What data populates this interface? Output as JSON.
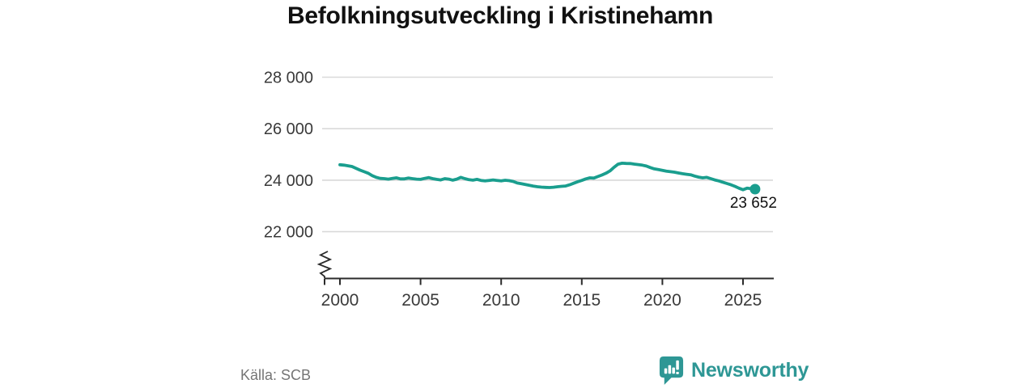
{
  "chart_data": {
    "type": "line",
    "title": "Befolkningsutveckling i Kristinehamn",
    "grid": "horizontal",
    "legend": "none",
    "x_axis": {
      "min": 2000,
      "max": 2025.75,
      "axis_break_to_zero": true,
      "ticks": [
        {
          "value": 2000,
          "label": "2000"
        },
        {
          "value": 2005,
          "label": "2005"
        },
        {
          "value": 2010,
          "label": "2010"
        },
        {
          "value": 2015,
          "label": "2015"
        },
        {
          "value": 2020,
          "label": "2020"
        },
        {
          "value": 2025,
          "label": "2025"
        }
      ]
    },
    "y_axis": {
      "max": 28000,
      "min_shown": 22000,
      "ticks": [
        {
          "value": 28000,
          "label": "28 000"
        },
        {
          "value": 26000,
          "label": "26 000"
        },
        {
          "value": 24000,
          "label": "24 000"
        },
        {
          "value": 22000,
          "label": "22 000"
        }
      ]
    },
    "series": [
      {
        "x_start": 2000,
        "x_step": 0.25,
        "values": [
          24600,
          24585,
          24560,
          24530,
          24460,
          24390,
          24330,
          24270,
          24180,
          24110,
          24070,
          24060,
          24040,
          24070,
          24090,
          24050,
          24050,
          24080,
          24060,
          24040,
          24030,
          24070,
          24100,
          24060,
          24030,
          24010,
          24060,
          24040,
          24000,
          24040,
          24110,
          24060,
          24020,
          24000,
          24030,
          23990,
          23970,
          23990,
          24010,
          23990,
          23970,
          23995,
          23980,
          23950,
          23890,
          23860,
          23830,
          23800,
          23770,
          23745,
          23730,
          23720,
          23715,
          23725,
          23745,
          23760,
          23775,
          23820,
          23880,
          23940,
          23990,
          24050,
          24090,
          24080,
          24140,
          24200,
          24270,
          24360,
          24500,
          24620,
          24660,
          24650,
          24645,
          24625,
          24605,
          24585,
          24550,
          24490,
          24440,
          24410,
          24380,
          24350,
          24330,
          24310,
          24280,
          24250,
          24230,
          24210,
          24160,
          24120,
          24090,
          24110,
          24060,
          24010,
          23970,
          23920,
          23870,
          23820,
          23760,
          23690,
          23630,
          23690,
          23670,
          23652
        ]
      }
    ],
    "end_point": {
      "x": 2025.75,
      "value": 23652,
      "label": "23 652"
    },
    "colors": {
      "line": "#1a9e8e",
      "grid": "#d9d9d9",
      "axis": "#2b2b2b",
      "tick_label": "#3a3a3a",
      "title": "#111111",
      "end_label": "#111111"
    }
  },
  "footer": {
    "source": "Källa: SCB",
    "source_color": "#757575",
    "brand": "Newsworthy",
    "brand_color": "#2e9795"
  }
}
